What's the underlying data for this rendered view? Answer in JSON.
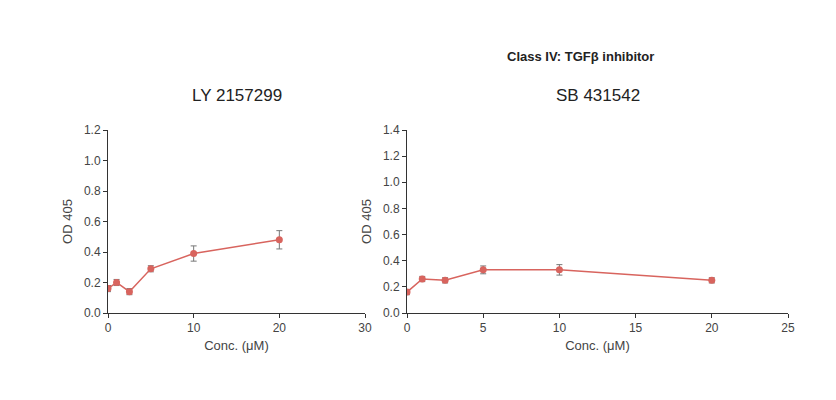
{
  "title": "Class IV: TGFβ inhibitor",
  "chart_data": [
    {
      "type": "line",
      "title": "LY 2157299",
      "x_label": "Conc. (μM)",
      "y_label": "OD 405",
      "x": [
        0,
        1,
        2.5,
        5,
        10,
        20
      ],
      "values": [
        0.16,
        0.2,
        0.14,
        0.29,
        0.39,
        0.48
      ],
      "error": [
        0.02,
        0.02,
        0.02,
        0.02,
        0.05,
        0.06
      ],
      "color": "#d8645e",
      "marker": "circle",
      "grid": false,
      "xlim": [
        0,
        30
      ],
      "xticks": [
        0,
        10,
        20,
        30
      ],
      "ylim": [
        0,
        1.2
      ],
      "yticks": [
        {
          "value": 0,
          "label": "0.0"
        },
        0.2,
        0.4,
        0.6,
        0.8,
        {
          "value": 1,
          "label": "1.0"
        },
        1.2
      ]
    },
    {
      "type": "line",
      "title": "SB 431542",
      "x_label": "Conc. (μM)",
      "y_label": "OD 405",
      "x": [
        0,
        1,
        2.5,
        5,
        10,
        20
      ],
      "values": [
        0.16,
        0.26,
        0.25,
        0.33,
        0.33,
        0.25
      ],
      "error": [
        0.02,
        0.02,
        0.02,
        0.03,
        0.04,
        0.02
      ],
      "color": "#d8645e",
      "marker": "circle",
      "grid": false,
      "xlim": [
        0,
        25
      ],
      "xticks": [
        0,
        5,
        10,
        15,
        20,
        25
      ],
      "ylim": [
        0,
        1.4
      ],
      "yticks": [
        {
          "value": 0,
          "label": "0.0"
        },
        0.2,
        0.4,
        0.6,
        0.8,
        {
          "value": 1,
          "label": "1.0"
        },
        1.2,
        1.4
      ]
    }
  ]
}
